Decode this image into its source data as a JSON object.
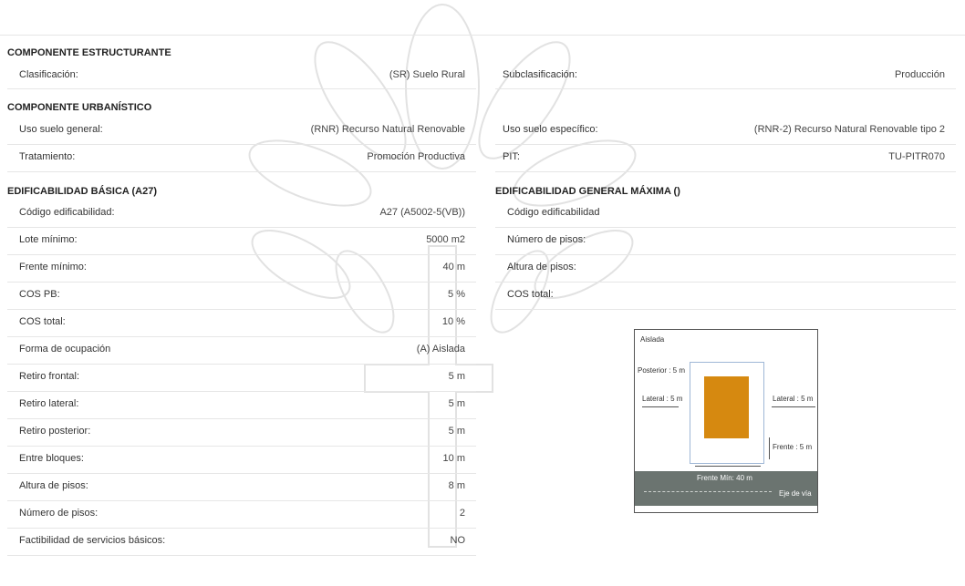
{
  "estructurante": {
    "title": "COMPONENTE ESTRUCTURANTE",
    "rows": [
      [
        "Clasificación:",
        "(SR) Suelo Rural",
        "Subclasificación:",
        "Producción"
      ]
    ]
  },
  "urbanistico": {
    "title": "COMPONENTE URBANÍSTICO",
    "rows": [
      [
        "Uso suelo general:",
        "(RNR) Recurso Natural Renovable",
        "Uso suelo específico:",
        "(RNR-2) Recurso Natural Renovable tipo 2"
      ],
      [
        "Tratamiento:",
        "Promoción Productiva",
        "PIT:",
        "TU-PITR070"
      ]
    ]
  },
  "basica": {
    "title": "EDIFICABILIDAD BÁSICA (A27)",
    "rows": [
      [
        "Código edificabilidad:",
        "A27 (A5002-5(VB))"
      ],
      [
        "Lote mínimo:",
        "5000 m2"
      ],
      [
        "Frente mínimo:",
        "40 m"
      ],
      [
        "COS PB:",
        "5 %"
      ],
      [
        "COS total:",
        "10 %"
      ],
      [
        "Forma de ocupación",
        "(A) Aislada"
      ],
      [
        "Retiro frontal:",
        "5 m"
      ],
      [
        "Retiro lateral:",
        "5 m"
      ],
      [
        "Retiro posterior:",
        "5 m"
      ],
      [
        "Entre bloques:",
        "10 m"
      ],
      [
        "Altura de pisos:",
        "8 m"
      ],
      [
        "Número de pisos:",
        "2"
      ],
      [
        "Factibilidad de servicios básicos:",
        "NO"
      ]
    ]
  },
  "maxima": {
    "title": "EDIFICABILIDAD GENERAL MÁXIMA ()",
    "rows": [
      "Código edificabilidad",
      "Número de pisos:",
      "Altura de pisos:",
      "COS total:"
    ]
  },
  "diagram": {
    "title": "Aislada",
    "posterior": "Posterior : 5 m",
    "lateral_left": "Lateral : 5 m",
    "lateral_right": "Lateral : 5 m",
    "frente": "Frente : 5 m",
    "frente_min": "Frente Mín: 40 m",
    "eje": "Eje de vía"
  }
}
